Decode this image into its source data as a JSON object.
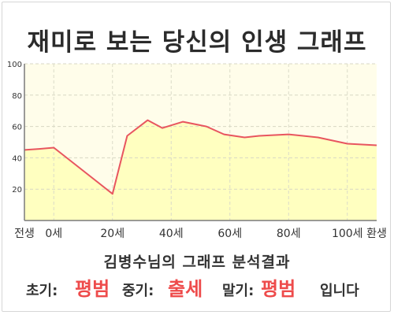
{
  "title": "재미로 보는 당신의 인생 그래프",
  "subtitle": "김병수님의 그래프 분석결과",
  "result": {
    "early_label": "초기:",
    "early_value": "평범",
    "middle_label": "중기:",
    "middle_value": "출세",
    "late_label": "말기:",
    "late_value": "평범",
    "ending": "입니다"
  },
  "colors": {
    "line": "#e8555f",
    "fill": "#ffffc0",
    "plot_background": "#fffdea",
    "accent_text": "#ee4b4b"
  },
  "chart_data": {
    "type": "area",
    "title": "재미로 보는 당신의 인생 그래프",
    "xlabel": "",
    "ylabel": "",
    "ylim": [
      0,
      100
    ],
    "yticks": [
      20,
      40,
      60,
      80,
      100
    ],
    "xlim": [
      -10,
      110
    ],
    "x_tick_labels": [
      {
        "x": -10,
        "label": "전생"
      },
      {
        "x": 0,
        "label": "0세"
      },
      {
        "x": 20,
        "label": "20세"
      },
      {
        "x": 40,
        "label": "40세"
      },
      {
        "x": 60,
        "label": "60세"
      },
      {
        "x": 80,
        "label": "80세"
      },
      {
        "x": 100,
        "label": "100세"
      },
      {
        "x": 110,
        "label": "환생"
      }
    ],
    "grid": true,
    "legend": "none",
    "series": [
      {
        "x": [
          -10,
          -5,
          0,
          20,
          25,
          32,
          37,
          44,
          52,
          58,
          65,
          70,
          80,
          90,
          100,
          110
        ],
        "values": [
          45,
          45.7,
          46.5,
          17,
          54,
          64,
          59,
          63,
          60,
          55,
          53,
          54,
          55,
          53,
          49,
          48
        ]
      }
    ]
  }
}
